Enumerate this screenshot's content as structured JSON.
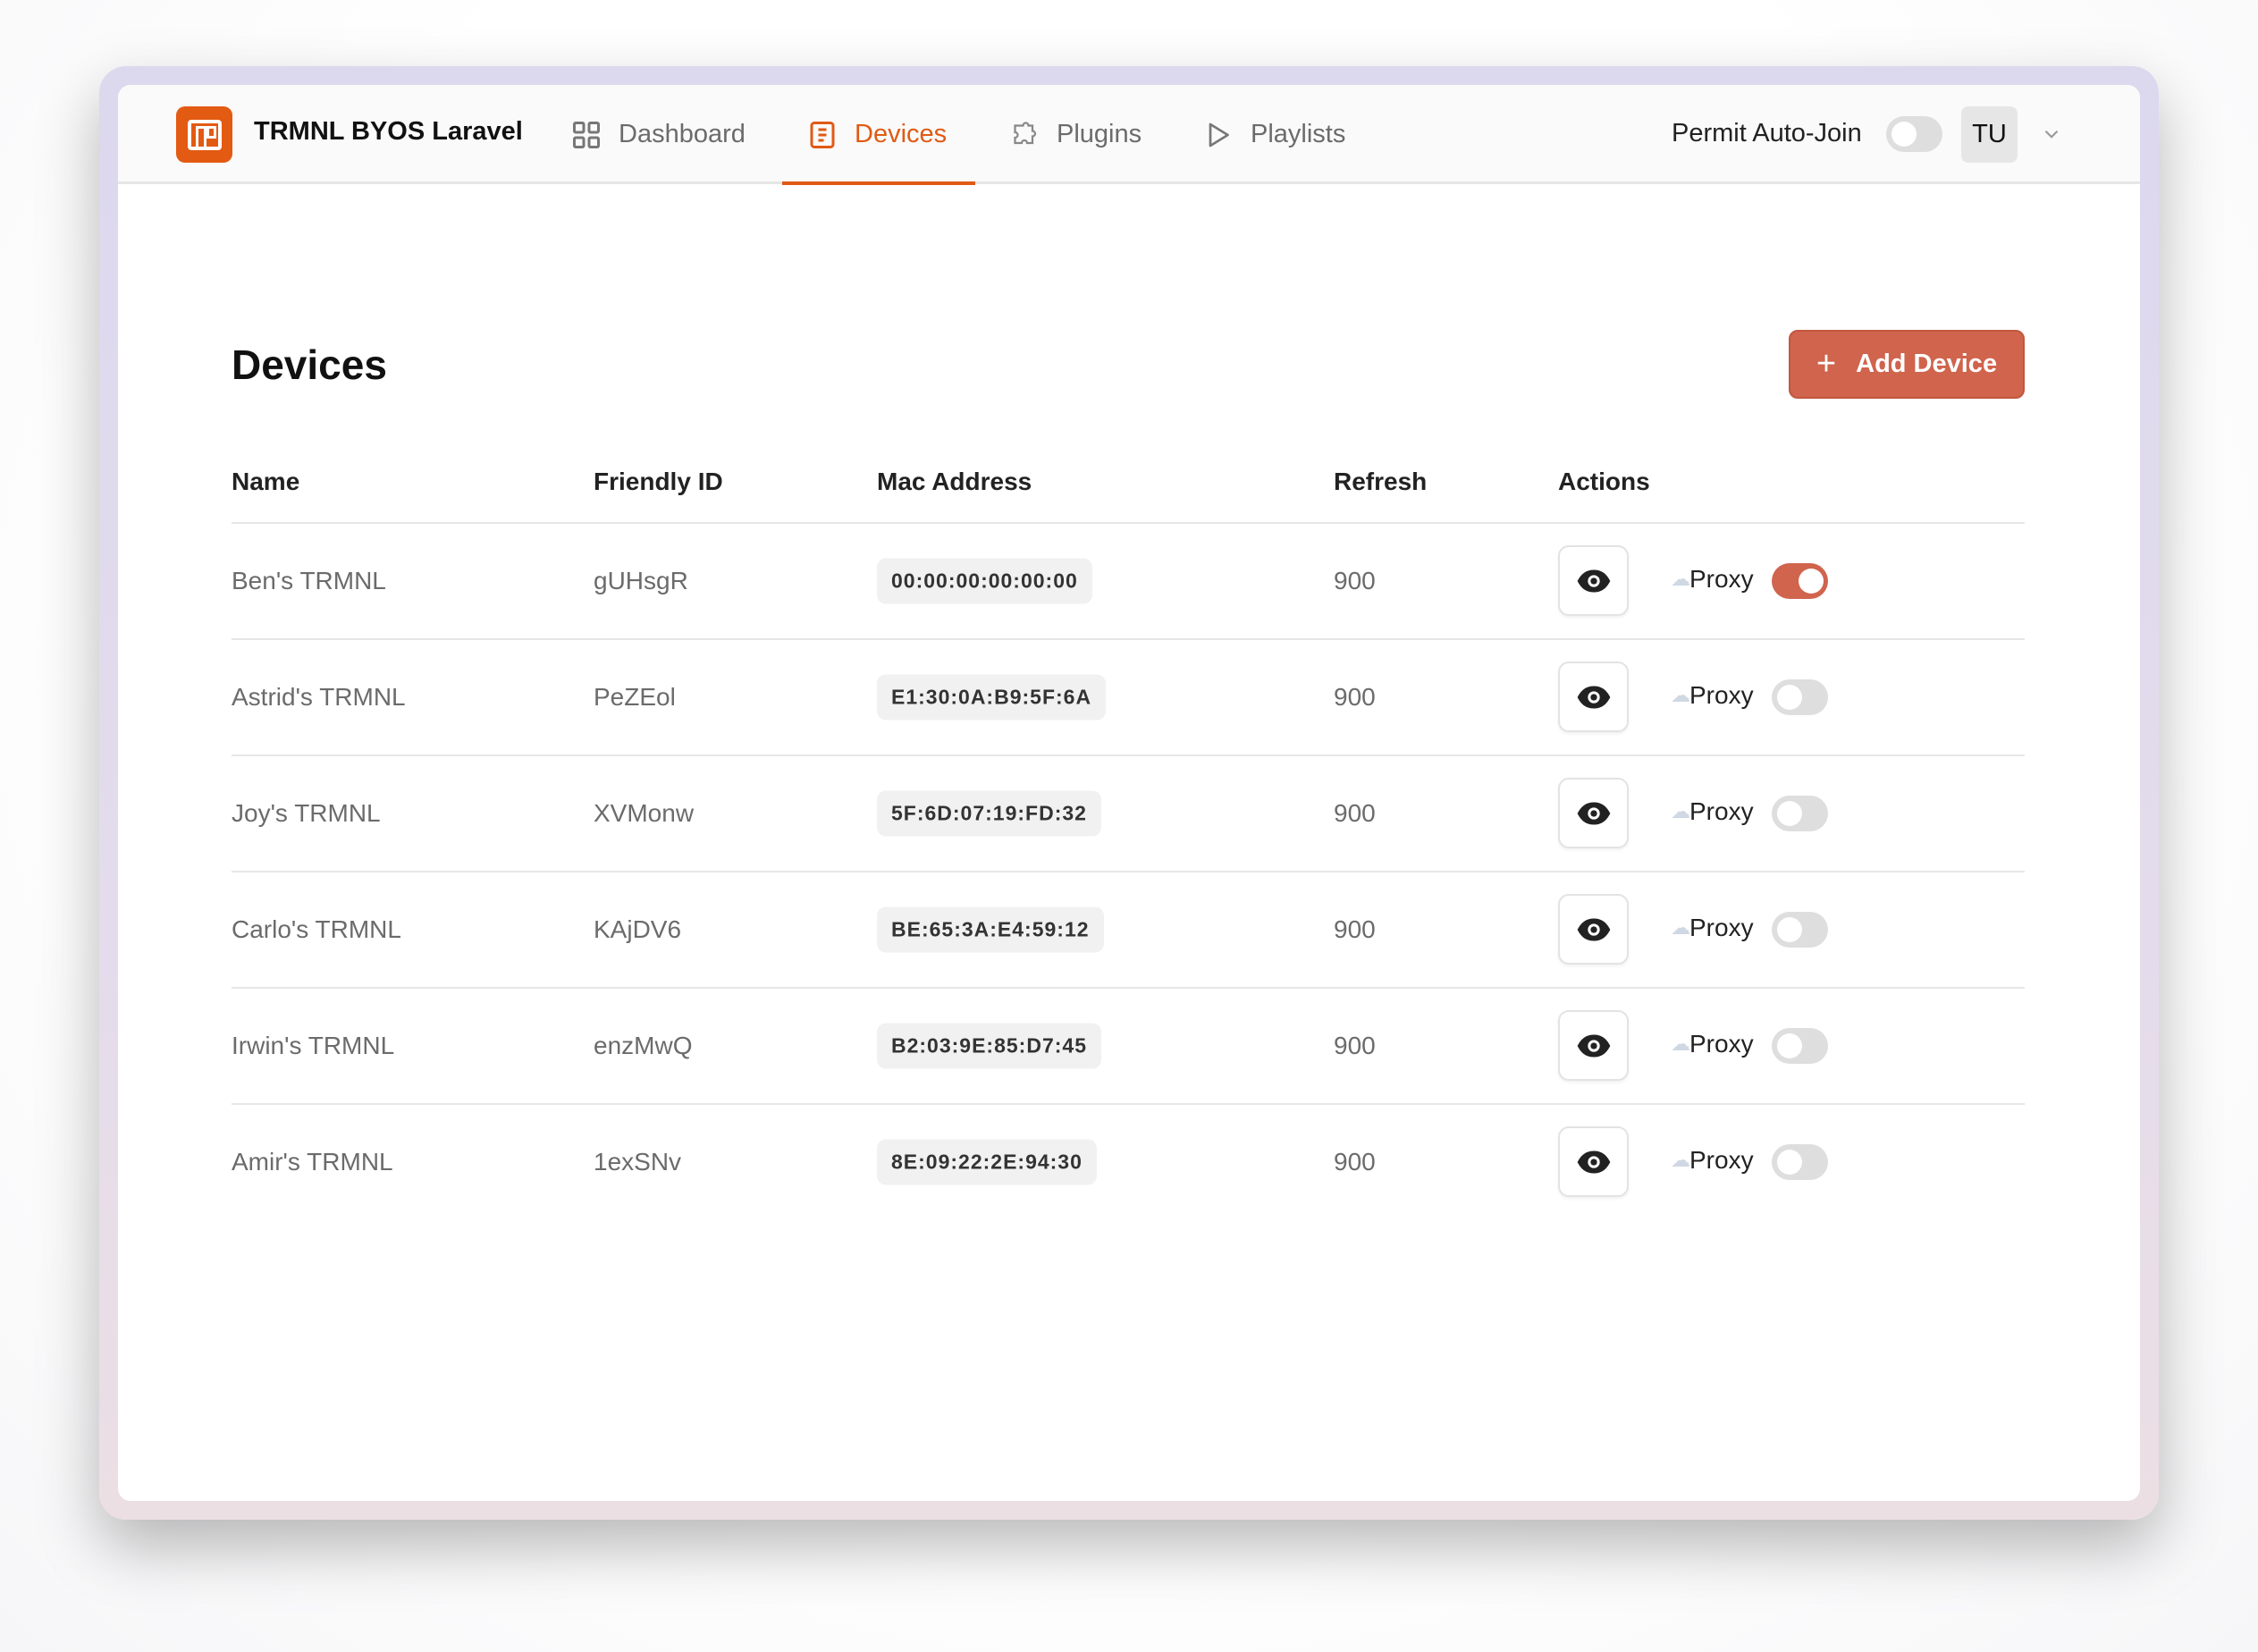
{
  "app": {
    "title": "TRMNL BYOS Laravel"
  },
  "nav": [
    {
      "label": "Dashboard",
      "icon": "grid-icon"
    },
    {
      "label": "Devices",
      "icon": "list-icon",
      "active": true
    },
    {
      "label": "Plugins",
      "icon": "puzzle-icon"
    },
    {
      "label": "Playlists",
      "icon": "play-icon"
    }
  ],
  "header": {
    "permit_label": "Permit Auto-Join",
    "permit_on": false,
    "user_initials": "TU"
  },
  "page": {
    "title": "Devices",
    "add_label": "Add Device"
  },
  "colors": {
    "accent": "#e05a14",
    "button": "#d0644d"
  },
  "table": {
    "headers": [
      "Name",
      "Friendly ID",
      "Mac Address",
      "Refresh",
      "Actions"
    ],
    "proxy_label": "Proxy",
    "rows": [
      {
        "name": "Ben's TRMNL",
        "friendly_id": "gUHsgR",
        "mac": "00:00:00:00:00:00",
        "refresh": "900",
        "proxy": true
      },
      {
        "name": "Astrid's TRMNL",
        "friendly_id": "PeZEol",
        "mac": "E1:30:0A:B9:5F:6A",
        "refresh": "900",
        "proxy": false
      },
      {
        "name": "Joy's TRMNL",
        "friendly_id": "XVMonw",
        "mac": "5F:6D:07:19:FD:32",
        "refresh": "900",
        "proxy": false
      },
      {
        "name": "Carlo's TRMNL",
        "friendly_id": "KAjDV6",
        "mac": "BE:65:3A:E4:59:12",
        "refresh": "900",
        "proxy": false
      },
      {
        "name": "Irwin's TRMNL",
        "friendly_id": "enzMwQ",
        "mac": "B2:03:9E:85:D7:45",
        "refresh": "900",
        "proxy": false
      },
      {
        "name": "Amir's TRMNL",
        "friendly_id": "1exSNv",
        "mac": "8E:09:22:2E:94:30",
        "refresh": "900",
        "proxy": false
      }
    ]
  }
}
